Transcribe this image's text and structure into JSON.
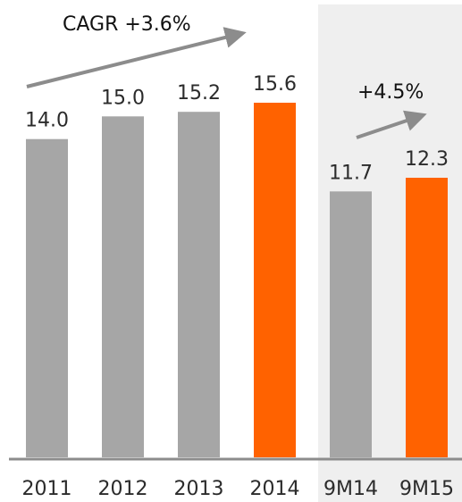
{
  "chart_data": {
    "type": "bar",
    "title": "",
    "xlabel": "",
    "ylabel": "",
    "ylim": [
      0,
      15.6
    ],
    "grid": false,
    "categories": [
      "2011",
      "2012",
      "2013",
      "2014",
      "9M14",
      "9M15"
    ],
    "values": [
      14.0,
      15.0,
      15.2,
      15.6,
      11.7,
      12.3
    ],
    "value_labels": [
      "14.0",
      "15.0",
      "15.2",
      "15.6",
      "11.7",
      "12.3"
    ],
    "highlighted": [
      "2014",
      "9M15"
    ],
    "shaded_group": [
      "9M14",
      "9M15"
    ],
    "annotations": [
      {
        "text": "CAGR +3.6%",
        "spans": [
          "2011",
          "2014"
        ]
      },
      {
        "text": "+4.5%",
        "spans": [
          "9M14",
          "9M15"
        ]
      }
    ]
  },
  "colors": {
    "bar": "#a6a6a6",
    "highlight": "#ff6200",
    "shade": "#efefef",
    "arrow": "#8c8c8c",
    "baseline": "#8c8c8c"
  }
}
